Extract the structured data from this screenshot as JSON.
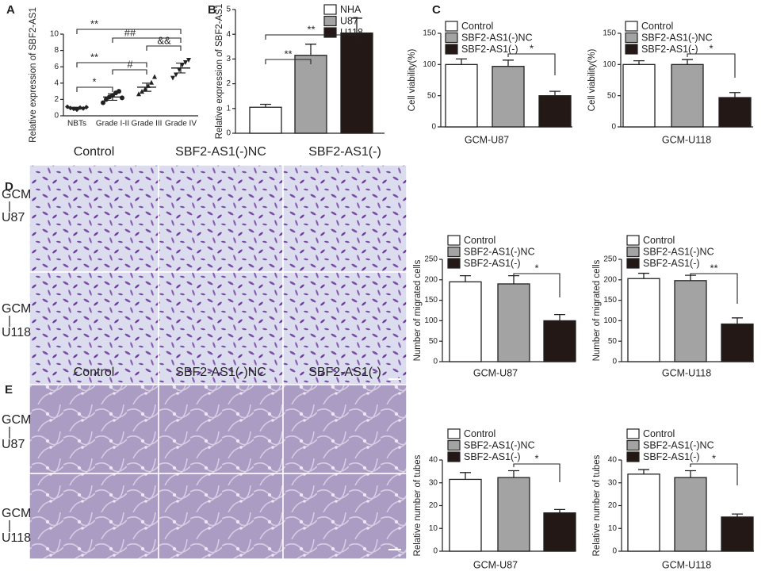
{
  "chart_data": [
    {
      "panel": "A",
      "type": "dot",
      "ylabel": "Relative expression of SBF2-AS1",
      "categories": [
        "NBTs",
        "Grade I-II",
        "Grade III",
        "Grade IV"
      ],
      "points": [
        [
          1.1,
          0.95,
          0.85,
          0.75,
          1.0,
          0.9,
          1.05
        ],
        [
          1.6,
          2.0,
          2.3,
          2.5,
          2.8,
          3.0,
          2.2
        ],
        [
          2.7,
          3.0,
          3.3,
          3.7,
          4.1,
          4.8
        ],
        [
          4.6,
          5.0,
          5.6,
          6.2,
          6.5,
          6.8
        ]
      ],
      "means": [
        0.95,
        2.3,
        3.5,
        5.85
      ],
      "errors": [
        0.1,
        0.4,
        0.5,
        0.6
      ],
      "ylim": [
        0,
        10
      ],
      "yticks": [
        0,
        2,
        4,
        6,
        8,
        10
      ],
      "annotations": [
        "**",
        "##",
        "&&",
        "**",
        "#",
        "*"
      ]
    },
    {
      "panel": "B",
      "type": "bar",
      "ylabel": "Relative expression of SBF2-AS1",
      "series": [
        {
          "name": "NHA",
          "color": "#ffffff",
          "values": [
            1.05
          ],
          "errors": [
            0.12
          ]
        },
        {
          "name": "U87",
          "color": "#a3a3a3",
          "values": [
            3.15
          ],
          "errors": [
            0.45
          ]
        },
        {
          "name": "U118",
          "color": "#231815",
          "values": [
            4.05
          ],
          "errors": [
            0.6
          ]
        }
      ],
      "ylim": [
        0,
        5
      ],
      "yticks": [
        0,
        1,
        2,
        3,
        4,
        5
      ],
      "annotations": [
        "**",
        "**"
      ]
    },
    {
      "panel": "C",
      "type": "bar",
      "ylabel": "Cell viability(%)",
      "xlabel": "GCM-U87",
      "series": [
        {
          "name": "Control",
          "color": "#ffffff",
          "values": [
            100
          ],
          "errors": [
            9
          ]
        },
        {
          "name": "SBF2-AS1(-)NC",
          "color": "#a3a3a3",
          "values": [
            97
          ],
          "errors": [
            10
          ]
        },
        {
          "name": "SBF2-AS1(-)",
          "color": "#231815",
          "values": [
            50
          ],
          "errors": [
            7
          ]
        }
      ],
      "ylim": [
        0,
        150
      ],
      "yticks": [
        0,
        50,
        100,
        150
      ],
      "annotations": [
        "*"
      ]
    },
    {
      "type": "bar",
      "ylabel": "Cell viability(%)",
      "xlabel": "GCM-U118",
      "series": [
        {
          "name": "Control",
          "color": "#ffffff",
          "values": [
            100
          ],
          "errors": [
            6
          ]
        },
        {
          "name": "SBF2-AS1(-)NC",
          "color": "#a3a3a3",
          "values": [
            100
          ],
          "errors": [
            8
          ]
        },
        {
          "name": "SBF2-AS1(-)",
          "color": "#231815",
          "values": [
            47
          ],
          "errors": [
            8
          ]
        }
      ],
      "ylim": [
        0,
        150
      ],
      "yticks": [
        0,
        50,
        100,
        150
      ],
      "annotations": [
        "*"
      ]
    },
    {
      "type": "bar",
      "ylabel": "Number of migrated cells",
      "xlabel": "GCM-U87",
      "series": [
        {
          "name": "Control",
          "color": "#ffffff",
          "values": [
            195
          ],
          "errors": [
            15
          ]
        },
        {
          "name": "SBF2-AS1(-)NC",
          "color": "#a3a3a3",
          "values": [
            190
          ],
          "errors": [
            20
          ]
        },
        {
          "name": "SBF2-AS1(-)",
          "color": "#231815",
          "values": [
            100
          ],
          "errors": [
            15
          ]
        }
      ],
      "ylim": [
        0,
        250
      ],
      "yticks": [
        0,
        50,
        100,
        150,
        200,
        250
      ],
      "annotations": [
        "*"
      ]
    },
    {
      "type": "bar",
      "ylabel": "Number of migrated cells",
      "xlabel": "GCM-U118",
      "series": [
        {
          "name": "Control",
          "color": "#ffffff",
          "values": [
            203
          ],
          "errors": [
            13
          ]
        },
        {
          "name": "SBF2-AS1(-)NC",
          "color": "#a3a3a3",
          "values": [
            198
          ],
          "errors": [
            13
          ]
        },
        {
          "name": "SBF2-AS1(-)",
          "color": "#231815",
          "values": [
            92
          ],
          "errors": [
            15
          ]
        }
      ],
      "ylim": [
        0,
        250
      ],
      "yticks": [
        0,
        50,
        100,
        150,
        200,
        250
      ],
      "annotations": [
        "**"
      ]
    },
    {
      "type": "bar",
      "ylabel": "Relative number of tubes",
      "xlabel": "GCM-U87",
      "series": [
        {
          "name": "Control",
          "color": "#ffffff",
          "values": [
            31.5
          ],
          "errors": [
            3
          ]
        },
        {
          "name": "SBF2-AS1(-)NC",
          "color": "#a3a3a3",
          "values": [
            32.3
          ],
          "errors": [
            3
          ]
        },
        {
          "name": "SBF2-AS1(-)",
          "color": "#231815",
          "values": [
            16.8
          ],
          "errors": [
            1.5
          ]
        }
      ],
      "ylim": [
        0,
        40
      ],
      "yticks": [
        0,
        10,
        20,
        30,
        40
      ],
      "annotations": [
        "*"
      ]
    },
    {
      "type": "bar",
      "ylabel": "Relative number of tubes",
      "xlabel": "GCM-U118",
      "series": [
        {
          "name": "Control",
          "color": "#ffffff",
          "values": [
            33.8
          ],
          "errors": [
            2
          ]
        },
        {
          "name": "SBF2-AS1(-)NC",
          "color": "#a3a3a3",
          "values": [
            32.3
          ],
          "errors": [
            3
          ]
        },
        {
          "name": "SBF2-AS1(-)",
          "color": "#231815",
          "values": [
            15
          ],
          "errors": [
            1.3
          ]
        }
      ],
      "ylim": [
        0,
        40
      ],
      "yticks": [
        0,
        10,
        20,
        30,
        40
      ],
      "annotations": [
        "*"
      ]
    }
  ],
  "micrographs": [
    {
      "panel": "D",
      "columns": [
        "Control",
        "SBF2-AS1(-)NC",
        "SBF2-AS1(-)"
      ],
      "rows": [
        [
          "GCM",
          "U87"
        ],
        [
          "GCM",
          "U118"
        ]
      ]
    },
    {
      "panel": "E",
      "columns": [
        "Control",
        "SBF2-AS1(-)NC",
        "SBF2-AS1(-)"
      ],
      "rows": [
        [
          "GCM",
          "U87"
        ],
        [
          "GCM",
          "U118"
        ]
      ]
    }
  ]
}
